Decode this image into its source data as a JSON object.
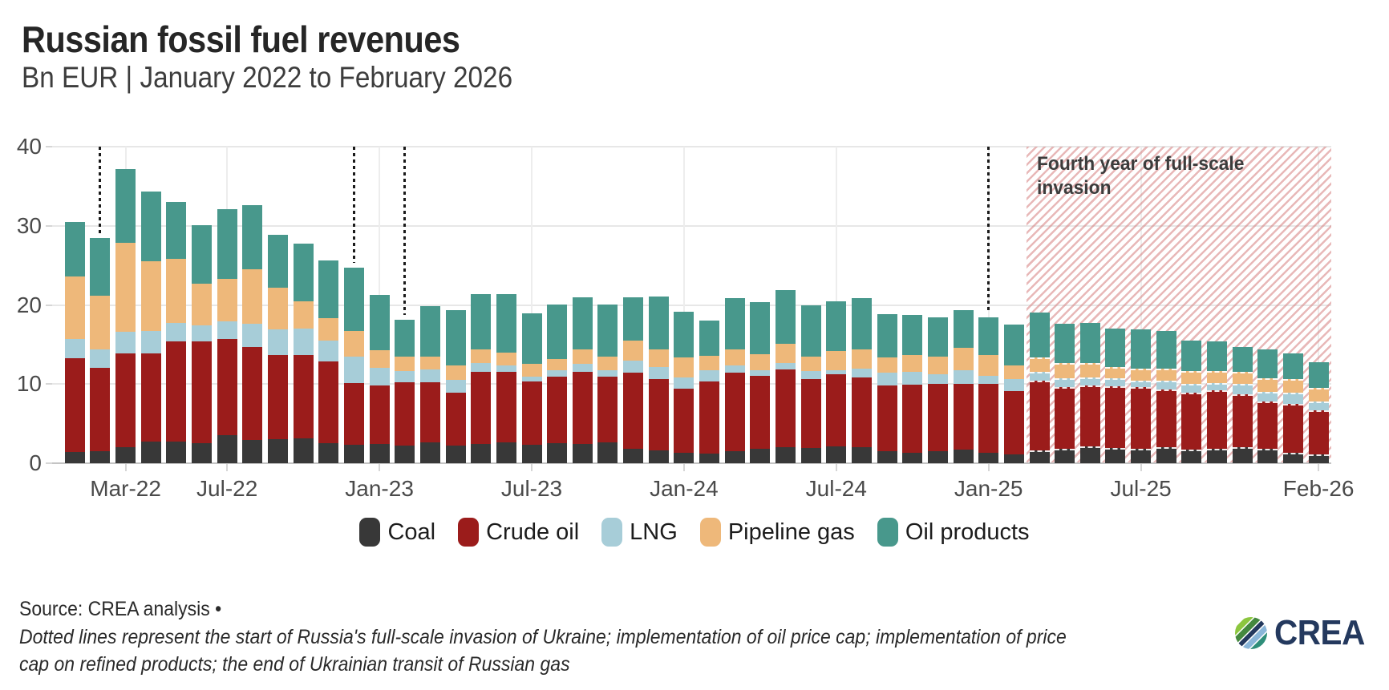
{
  "header": {
    "title": "Russian fossil fuel revenues",
    "subtitle": "Bn EUR | January 2022 to February 2026"
  },
  "chart_data": {
    "type": "bar",
    "stacked": true,
    "unit": "Bn EUR",
    "title": "Russian fossil fuel revenues",
    "subtitle": "Bn EUR | January 2022 to February 2026",
    "ylim": [
      0,
      40
    ],
    "yticks": [
      0,
      10,
      20,
      30,
      40
    ],
    "grid": true,
    "legend_position": "bottom",
    "xtick_labels": [
      "Mar-22",
      "Jul-22",
      "Jan-23",
      "Jul-23",
      "Jan-24",
      "Jul-24",
      "Jan-25",
      "Jul-25",
      "Feb-26"
    ],
    "xtick_month_index": [
      2,
      6,
      12,
      18,
      24,
      30,
      36,
      42,
      49
    ],
    "categories": [
      "Jan-22",
      "Feb-22",
      "Mar-22",
      "Apr-22",
      "May-22",
      "Jun-22",
      "Jul-22",
      "Aug-22",
      "Sep-22",
      "Oct-22",
      "Nov-22",
      "Dec-22",
      "Jan-23",
      "Feb-23",
      "Mar-23",
      "Apr-23",
      "May-23",
      "Jun-23",
      "Jul-23",
      "Aug-23",
      "Sep-23",
      "Oct-23",
      "Nov-23",
      "Dec-23",
      "Jan-24",
      "Feb-24",
      "Mar-24",
      "Apr-24",
      "May-24",
      "Jun-24",
      "Jul-24",
      "Aug-24",
      "Sep-24",
      "Oct-24",
      "Nov-24",
      "Dec-24",
      "Jan-25",
      "Feb-25",
      "Mar-25",
      "Apr-25",
      "May-25",
      "Jun-25",
      "Jul-25",
      "Aug-25",
      "Sep-25",
      "Oct-25",
      "Nov-25",
      "Dec-25",
      "Jan-26",
      "Feb-26"
    ],
    "series": [
      {
        "name": "Coal",
        "color": "#383838",
        "values": [
          1.4,
          1.5,
          2.0,
          2.7,
          2.7,
          2.5,
          3.5,
          2.9,
          3.0,
          3.1,
          2.5,
          2.3,
          2.4,
          2.2,
          2.6,
          2.2,
          2.4,
          2.6,
          2.3,
          2.5,
          2.4,
          2.6,
          1.8,
          1.6,
          1.3,
          1.2,
          1.5,
          1.8,
          2.0,
          1.9,
          2.1,
          2.0,
          1.5,
          1.3,
          1.5,
          1.7,
          1.3,
          1.1,
          1.6,
          1.8,
          2.1,
          1.9,
          1.8,
          2.0,
          1.7,
          1.8,
          2.0,
          1.8,
          1.3,
          1.1
        ]
      },
      {
        "name": "Crude oil",
        "color": "#9b1c1b",
        "values": [
          11.9,
          10.6,
          11.9,
          11.2,
          12.7,
          12.9,
          12.2,
          11.8,
          10.7,
          10.6,
          10.4,
          7.8,
          7.4,
          8.0,
          7.6,
          6.7,
          9.1,
          8.9,
          8.0,
          8.4,
          9.1,
          8.3,
          9.6,
          9.0,
          8.1,
          9.1,
          9.9,
          9.2,
          9.9,
          8.7,
          9.1,
          8.8,
          8.3,
          8.6,
          8.5,
          8.3,
          8.7,
          8.0,
          8.8,
          7.8,
          7.7,
          7.8,
          7.8,
          7.3,
          7.2,
          7.4,
          6.7,
          6.0,
          6.2,
          5.6
        ]
      },
      {
        "name": "LNG",
        "color": "#a7cdd8",
        "values": [
          2.4,
          2.3,
          2.7,
          2.8,
          2.3,
          2.0,
          2.2,
          2.9,
          3.2,
          3.3,
          2.6,
          3.4,
          2.3,
          1.4,
          1.7,
          1.6,
          1.2,
          0.9,
          0.6,
          0.8,
          1.1,
          0.9,
          1.6,
          1.6,
          1.4,
          1.4,
          1.0,
          0.7,
          0.8,
          1.0,
          0.5,
          1.2,
          1.6,
          1.6,
          1.2,
          1.7,
          1.0,
          1.5,
          1.1,
          1.1,
          1.0,
          1.0,
          0.8,
          1.1,
          1.1,
          0.9,
          1.3,
          1.2,
          1.4,
          1.1
        ]
      },
      {
        "name": "Pipeline gas",
        "color": "#eeb87a",
        "values": [
          7.9,
          6.8,
          11.3,
          8.8,
          8.1,
          5.3,
          5.4,
          6.9,
          5.3,
          3.5,
          2.8,
          3.2,
          2.2,
          1.9,
          1.6,
          1.9,
          1.7,
          1.6,
          1.7,
          1.5,
          1.8,
          1.7,
          2.5,
          2.2,
          2.6,
          1.9,
          2.0,
          2.1,
          2.4,
          1.9,
          2.5,
          2.4,
          2.0,
          2.2,
          2.3,
          2.9,
          2.7,
          1.8,
          1.9,
          2.0,
          1.9,
          1.5,
          1.6,
          1.6,
          1.6,
          1.6,
          1.5,
          1.7,
          1.7,
          1.7
        ]
      },
      {
        "name": "Oil products",
        "color": "#48988c",
        "values": [
          6.9,
          7.3,
          9.3,
          8.8,
          7.2,
          7.4,
          8.8,
          8.1,
          6.7,
          7.2,
          7.3,
          8.0,
          7.0,
          4.6,
          6.4,
          6.9,
          7.0,
          7.4,
          6.3,
          6.9,
          6.6,
          6.6,
          5.5,
          6.7,
          5.7,
          4.4,
          6.5,
          6.6,
          6.8,
          6.5,
          6.3,
          6.5,
          5.4,
          5.0,
          4.9,
          4.7,
          4.7,
          5.1,
          5.6,
          4.9,
          5.0,
          4.8,
          4.9,
          4.7,
          3.9,
          3.7,
          3.2,
          3.7,
          3.3,
          3.3
        ]
      }
    ],
    "annotations": {
      "dotted_lines": [
        {
          "month": "Feb-22",
          "label": "start of Russia's full-scale invasion of Ukraine"
        },
        {
          "month": "Dec-22",
          "label": "implementation of oil price cap"
        },
        {
          "month": "Feb-23",
          "label": "implementation of price cap on refined products"
        },
        {
          "month": "Jan-25",
          "label": "the end of Ukrainian transit of Russian gas"
        }
      ],
      "hatched_region": {
        "label": "Fourth year of full-scale invasion",
        "start_month": "Mar-25",
        "end_month": "Feb-26",
        "stripe_color": "#d67e7e"
      }
    }
  },
  "legend": {
    "items": [
      {
        "label": "Coal",
        "color": "#383838"
      },
      {
        "label": "Crude oil",
        "color": "#9b1c1b"
      },
      {
        "label": "LNG",
        "color": "#a7cdd8"
      },
      {
        "label": "Pipeline gas",
        "color": "#eeb87a"
      },
      {
        "label": "Oil products",
        "color": "#48988c"
      }
    ]
  },
  "footer": {
    "source": "Source: CREA analysis •",
    "note_line1": "Dotted lines represent the start of Russia's full-scale invasion of Ukraine; implementation of oil price cap; implementation of price",
    "note_line2": "cap on refined products; the end of Ukrainian transit of Russian gas",
    "logo_text": "CREA"
  }
}
